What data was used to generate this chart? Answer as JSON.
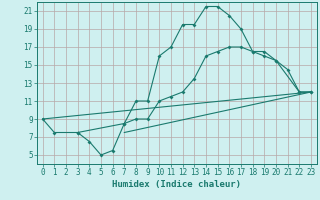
{
  "xlabel": "Humidex (Indice chaleur)",
  "bg_color": "#cff0f0",
  "grid_color": "#b8a8a8",
  "line_color": "#1a7a6e",
  "xlim": [
    -0.5,
    23.5
  ],
  "ylim": [
    4.0,
    22.0
  ],
  "xticks": [
    0,
    1,
    2,
    3,
    4,
    5,
    6,
    7,
    8,
    9,
    10,
    11,
    12,
    13,
    14,
    15,
    16,
    17,
    18,
    19,
    20,
    21,
    22,
    23
  ],
  "yticks": [
    5,
    7,
    9,
    11,
    13,
    15,
    17,
    19,
    21
  ],
  "line1_x": [
    0,
    1,
    3,
    4,
    5,
    6,
    7,
    8,
    9,
    10,
    11,
    12,
    13,
    14,
    15,
    16,
    17,
    18,
    19,
    20,
    21,
    22,
    23
  ],
  "line1_y": [
    9.0,
    7.5,
    7.5,
    6.5,
    5.0,
    5.5,
    8.5,
    11.0,
    11.0,
    16.0,
    17.0,
    19.5,
    19.5,
    21.5,
    21.5,
    20.5,
    19.0,
    16.5,
    16.5,
    15.5,
    14.5,
    12.0,
    12.0
  ],
  "line2_x": [
    0,
    23
  ],
  "line2_y": [
    9.0,
    12.0
  ],
  "line3_x": [
    3,
    7,
    8,
    9,
    10,
    11,
    12,
    13,
    14,
    15,
    16,
    17,
    18,
    19,
    20,
    22,
    23
  ],
  "line3_y": [
    7.5,
    8.5,
    9.0,
    9.0,
    11.0,
    11.5,
    12.0,
    13.5,
    16.0,
    16.5,
    17.0,
    17.0,
    16.5,
    16.0,
    15.5,
    12.0,
    12.0
  ],
  "line4_x": [
    7,
    23
  ],
  "line4_y": [
    7.5,
    12.0
  ],
  "xlabel_fontsize": 6.5,
  "tick_fontsize": 5.5
}
